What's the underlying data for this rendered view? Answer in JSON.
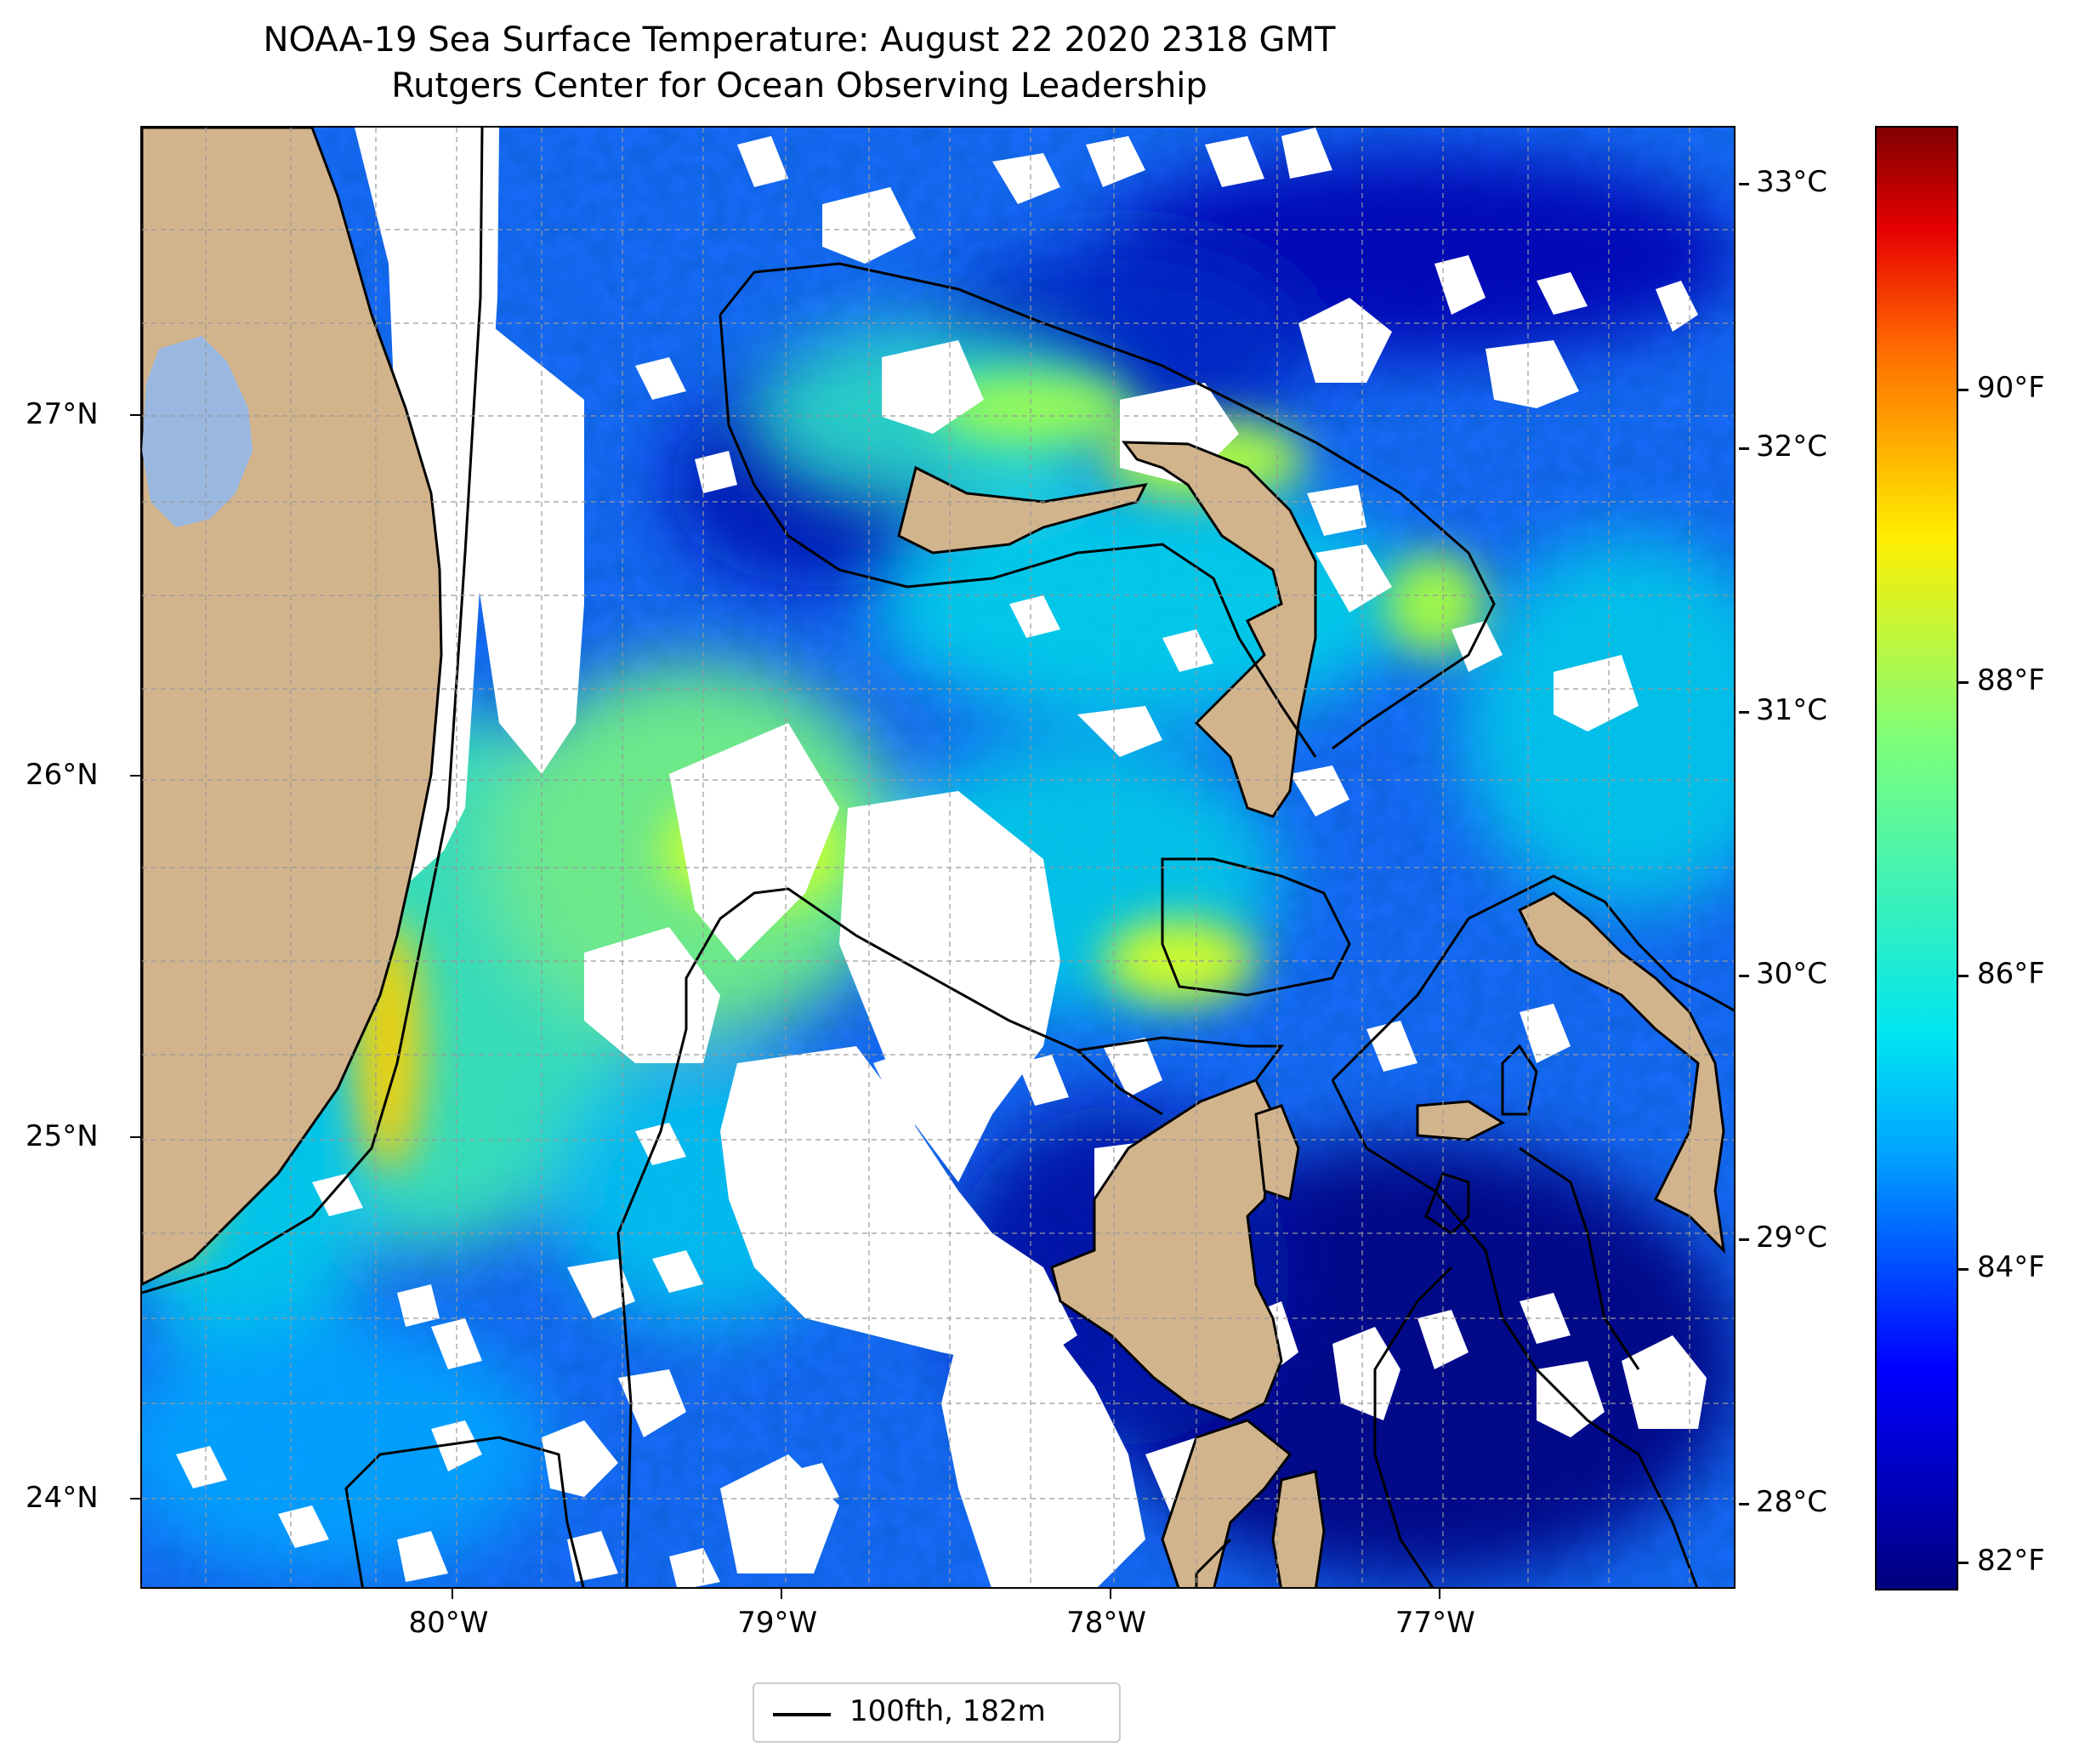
{
  "title": {
    "line1": "NOAA-19 Sea Surface Temperature: August 22 2020 2318 GMT",
    "line2": "Rutgers Center for Ocean Observing Leadership"
  },
  "map": {
    "extent": {
      "lon": [
        -80.95,
        -76.1
      ],
      "lat": [
        23.75,
        27.8
      ]
    },
    "longitude_ticks": [
      {
        "value": -80,
        "label": "80°W"
      },
      {
        "value": -79,
        "label": "79°W"
      },
      {
        "value": -78,
        "label": "78°W"
      },
      {
        "value": -77,
        "label": "77°W"
      }
    ],
    "latitude_ticks": [
      {
        "value": 24,
        "label": "24°N"
      },
      {
        "value": 25,
        "label": "25°N"
      },
      {
        "value": 26,
        "label": "26°N"
      },
      {
        "value": 27,
        "label": "27°N"
      }
    ],
    "gridlines": true,
    "land_color": "#d2b48c",
    "lake_color": "#9ab7e0",
    "no_data_color": "#ffffff"
  },
  "colorbar": {
    "colormap": "jet",
    "celsius_ticks": [
      {
        "value": 28,
        "label": "28°C"
      },
      {
        "value": 29,
        "label": "29°C"
      },
      {
        "value": 30,
        "label": "30°C"
      },
      {
        "value": 31,
        "label": "31°C"
      },
      {
        "value": 32,
        "label": "32°C"
      },
      {
        "value": 33,
        "label": "33°C"
      }
    ],
    "fahrenheit_ticks": [
      {
        "value": 82,
        "label": "82°F"
      },
      {
        "value": 84,
        "label": "84°F"
      },
      {
        "value": 86,
        "label": "86°F"
      },
      {
        "value": 88,
        "label": "88°F"
      },
      {
        "value": 90,
        "label": "90°F"
      }
    ]
  },
  "legend": {
    "entries": [
      {
        "label": "100fth, 182m",
        "color": "#000000"
      }
    ]
  }
}
